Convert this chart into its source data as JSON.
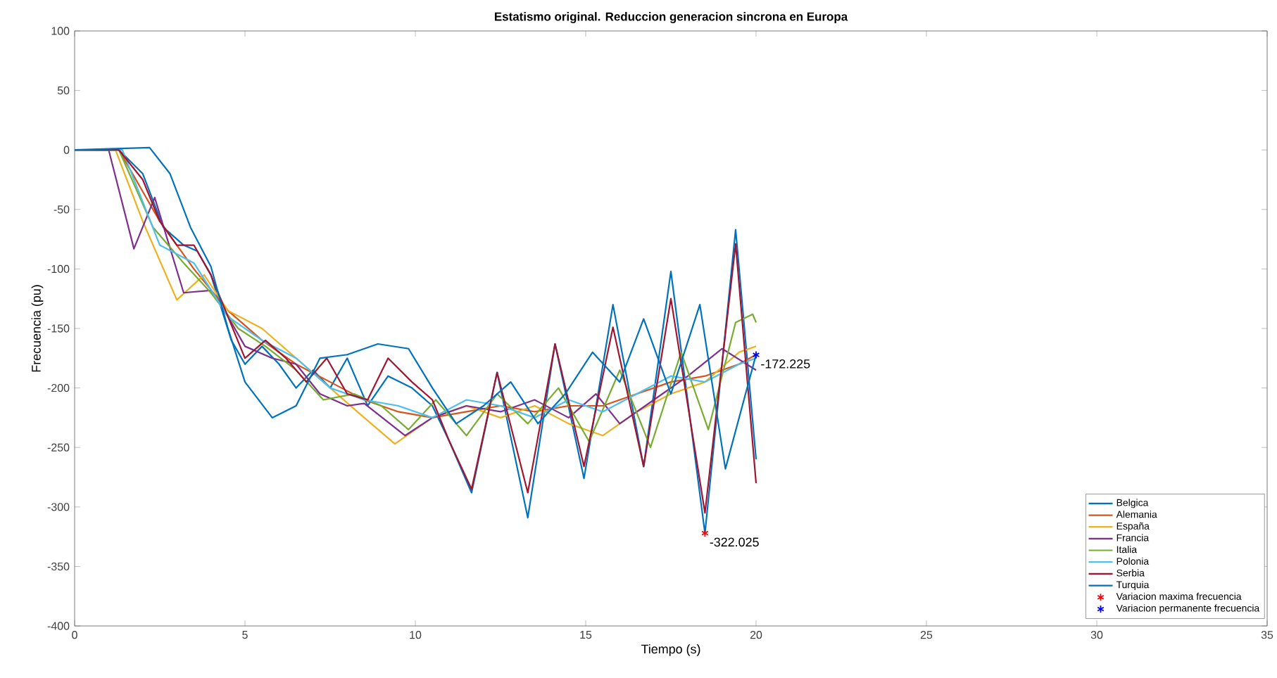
{
  "chart_data": {
    "type": "line",
    "title": "Estatismo original. Reduccion generacion sincrona en Europa",
    "xlabel": "Tiempo (s)",
    "ylabel": "Frecuencia (pu)",
    "xlim": [
      0,
      35
    ],
    "xticks": [
      0,
      5,
      10,
      15,
      20,
      25,
      30,
      35
    ],
    "ylim": [
      -400,
      100
    ],
    "yticks": [
      -400,
      -350,
      -300,
      -250,
      -200,
      -150,
      -100,
      -50,
      0,
      50,
      100
    ],
    "grid": false,
    "legend": "bottom right",
    "marker": "none",
    "line_style": "solid",
    "series": [
      {
        "name": "Belgica",
        "color": "#0072bd",
        "x": [
          0,
          1.3,
          2.0,
          2.6,
          3.2,
          3.6,
          4.0,
          4.6,
          5.0,
          5.5,
          6.0,
          6.5,
          7.0,
          7.5,
          8.0,
          8.6,
          9.2,
          9.9,
          10.5,
          11.0,
          11.65,
          12.4,
          13.3,
          14.1,
          14.95,
          15.8,
          16.7,
          17.5,
          18.5,
          19.4,
          20.0
        ],
        "values": [
          0,
          0,
          -20,
          -65,
          -80,
          -85,
          -105,
          -160,
          -180,
          -165,
          -180,
          -200,
          -185,
          -200,
          -175,
          -215,
          -190,
          -200,
          -215,
          -245,
          -288,
          -187,
          -309,
          -163,
          -276,
          -130,
          -266,
          -102,
          -322,
          -67,
          -260
        ]
      },
      {
        "name": "Alemania",
        "color": "#d95319",
        "x": [
          0,
          1.3,
          2.5,
          3.5,
          4.5,
          5.5,
          6.5,
          7.5,
          8.5,
          9.5,
          10.5,
          11.5,
          12.5,
          13.5,
          14.5,
          15.5,
          16.5,
          17.5,
          18.5,
          19.5,
          20
        ],
        "values": [
          0,
          0,
          -60,
          -100,
          -135,
          -160,
          -180,
          -195,
          -210,
          -220,
          -225,
          -220,
          -215,
          -220,
          -215,
          -215,
          -205,
          -195,
          -190,
          -180,
          -172
        ]
      },
      {
        "name": "España",
        "color": "#edb120",
        "x": [
          0,
          1.2,
          2.0,
          3.0,
          3.8,
          4.5,
          5.5,
          6.5,
          7.5,
          8.5,
          9.4,
          10.5,
          11.5,
          12.5,
          13.5,
          14.5,
          15.5,
          16.5,
          17.5,
          18.5,
          19.5,
          20.0
        ],
        "values": [
          0,
          0,
          -60,
          -126,
          -105,
          -135,
          -150,
          -175,
          -200,
          -225,
          -247,
          -225,
          -215,
          -225,
          -215,
          -230,
          -240,
          -220,
          -205,
          -195,
          -170,
          -165
        ]
      },
      {
        "name": "Francia",
        "color": "#7e2f8e",
        "x": [
          0,
          1.0,
          1.74,
          2.35,
          3.2,
          4.0,
          4.5,
          5.0,
          5.8,
          6.5,
          7.2,
          8.0,
          8.5,
          9.7,
          10.5,
          11.5,
          12.5,
          13.5,
          14.5,
          15.3,
          16.0,
          17.0,
          18.0,
          19.0,
          20.0
        ],
        "values": [
          0,
          0,
          -83,
          -40,
          -120,
          -118,
          -140,
          -165,
          -175,
          -180,
          -205,
          -215,
          -213,
          -240,
          -225,
          -215,
          -220,
          -210,
          -225,
          -205,
          -230,
          -210,
          -190,
          -167,
          -185
        ]
      },
      {
        "name": "Italia",
        "color": "#77ac30",
        "x": [
          0,
          1.3,
          2.3,
          3.2,
          4.0,
          4.8,
          5.6,
          6.5,
          7.3,
          8.2,
          9.0,
          9.8,
          10.6,
          11.5,
          12.4,
          13.3,
          14.2,
          15.1,
          16.0,
          16.9,
          17.8,
          18.6,
          19.4,
          19.9,
          20.0
        ],
        "values": [
          0,
          0,
          -65,
          -95,
          -120,
          -150,
          -165,
          -185,
          -210,
          -205,
          -215,
          -235,
          -210,
          -240,
          -205,
          -230,
          -200,
          -245,
          -185,
          -250,
          -170,
          -235,
          -145,
          -138,
          -145
        ]
      },
      {
        "name": "Polonia",
        "color": "#4dbeee",
        "x": [
          0,
          1.4,
          2.5,
          3.5,
          4.5,
          5.5,
          6.5,
          7.5,
          8.5,
          9.5,
          10.5,
          11.5,
          12.5,
          13.5,
          14.5,
          15.5,
          16.5,
          17.5,
          18.5,
          19.5,
          20
        ],
        "values": [
          0,
          0,
          -80,
          -95,
          -140,
          -160,
          -175,
          -200,
          -210,
          -215,
          -225,
          -210,
          -215,
          -225,
          -210,
          -220,
          -205,
          -190,
          -195,
          -180,
          -175
        ]
      },
      {
        "name": "Serbia",
        "color": "#a2142f",
        "x": [
          0,
          1.3,
          2.0,
          2.5,
          3.0,
          3.5,
          4.0,
          4.5,
          5.0,
          5.6,
          6.2,
          6.8,
          7.4,
          8.0,
          8.6,
          9.2,
          9.9,
          10.5,
          11.0,
          11.65,
          12.4,
          13.3,
          14.1,
          14.95,
          15.8,
          16.7,
          17.5,
          18.5,
          19.4,
          20.0
        ],
        "values": [
          0,
          0,
          -25,
          -60,
          -80,
          -80,
          -105,
          -140,
          -175,
          -160,
          -175,
          -195,
          -175,
          -205,
          -210,
          -175,
          -195,
          -210,
          -245,
          -285,
          -187,
          -288,
          -163,
          -266,
          -149,
          -266,
          -125,
          -305,
          -79,
          -280
        ]
      },
      {
        "name": "Turquia",
        "color": "#0072bd",
        "x": [
          0,
          2.2,
          2.8,
          3.4,
          4.0,
          4.5,
          5.0,
          5.8,
          6.5,
          7.2,
          8.0,
          8.9,
          9.8,
          10.5,
          11.2,
          12.0,
          12.8,
          13.6,
          14.4,
          15.2,
          16.0,
          16.7,
          17.5,
          18.35,
          19.1,
          20.0
        ],
        "values": [
          0,
          2,
          -20,
          -65,
          -98,
          -150,
          -195,
          -225,
          -215,
          -175,
          -172,
          -163,
          -167,
          -200,
          -230,
          -215,
          -195,
          -230,
          -205,
          -170,
          -195,
          -142,
          -205,
          -130,
          -268,
          -172
        ]
      },
      {
        "name": "Variacion maxima frecuencia",
        "type": "scatter",
        "marker": "cross",
        "color": "#ff0000",
        "x": [
          18.5
        ],
        "values": [
          -322.025
        ],
        "value_labels": [
          "-322.025"
        ]
      },
      {
        "name": "Variacion permanente frecuencia",
        "type": "scatter",
        "marker": "cross",
        "color": "#0000ff",
        "x": [
          20
        ],
        "values": [
          -172.225
        ],
        "value_labels": [
          "-172.225"
        ]
      }
    ]
  }
}
